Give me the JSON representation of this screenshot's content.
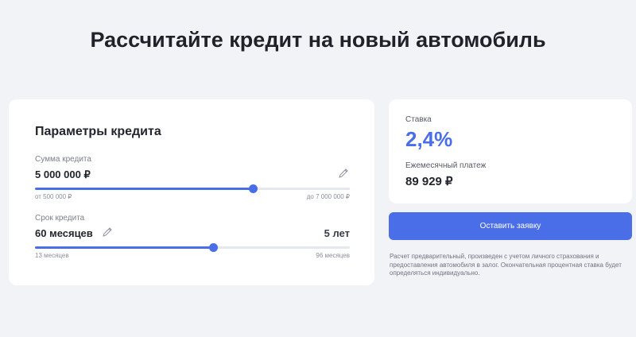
{
  "title": "Рассчитайте кредит на новый автомобиль",
  "params": {
    "heading": "Параметры кредита",
    "amount": {
      "label": "Сумма кредита",
      "value": "5 000 000 ₽",
      "min_label": "от 500 000 ₽",
      "max_label": "до 7 000 000 ₽",
      "min": 500000,
      "max": 7000000,
      "current": 5000000
    },
    "term": {
      "label": "Срок кредита",
      "value": "60 месяцев",
      "years": "5 лет",
      "min_label": "13 месяцев",
      "max_label": "96 месяцев",
      "min": 13,
      "max": 96,
      "current": 60
    }
  },
  "result": {
    "rate_label": "Ставка",
    "rate": "2,4%",
    "payment_label": "Ежемесячный платеж",
    "payment": "89 929 ₽"
  },
  "submit_label": "Оставить заявку",
  "note": "Расчет предварительный, произведен с учетом личного страхования и предоставления автомобиля в залог. Окончательная процентная ставка будет определяться индивидуально.",
  "colors": {
    "accent": "#4a6ee8",
    "background": "#f2f3f7"
  }
}
